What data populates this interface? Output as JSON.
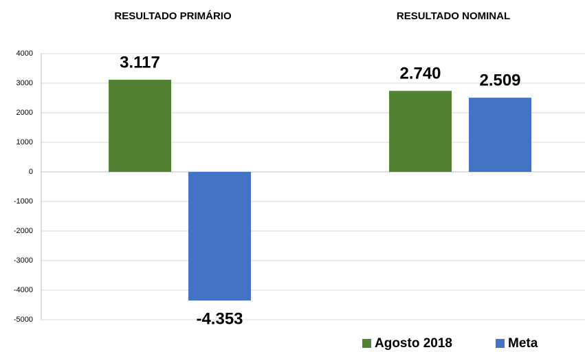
{
  "chart_data": {
    "type": "bar",
    "categories": [
      "RESULTADO PRIMÁRIO",
      "RESULTADO NOMINAL"
    ],
    "series": [
      {
        "name": "Agosto 2018",
        "color": "#548235",
        "values": [
          3117,
          2740
        ],
        "value_labels": [
          "3.117",
          "2.740"
        ]
      },
      {
        "name": "Meta",
        "color": "#4472c4",
        "values": [
          -4353,
          2509
        ],
        "value_labels": [
          "-4.353",
          "2.509"
        ]
      }
    ],
    "ylim": [
      -5000,
      4000
    ],
    "yticks": [
      -5000,
      -4000,
      -3000,
      -2000,
      -1000,
      0,
      1000,
      2000,
      3000,
      4000
    ],
    "grid": true,
    "legend": "bottom"
  }
}
